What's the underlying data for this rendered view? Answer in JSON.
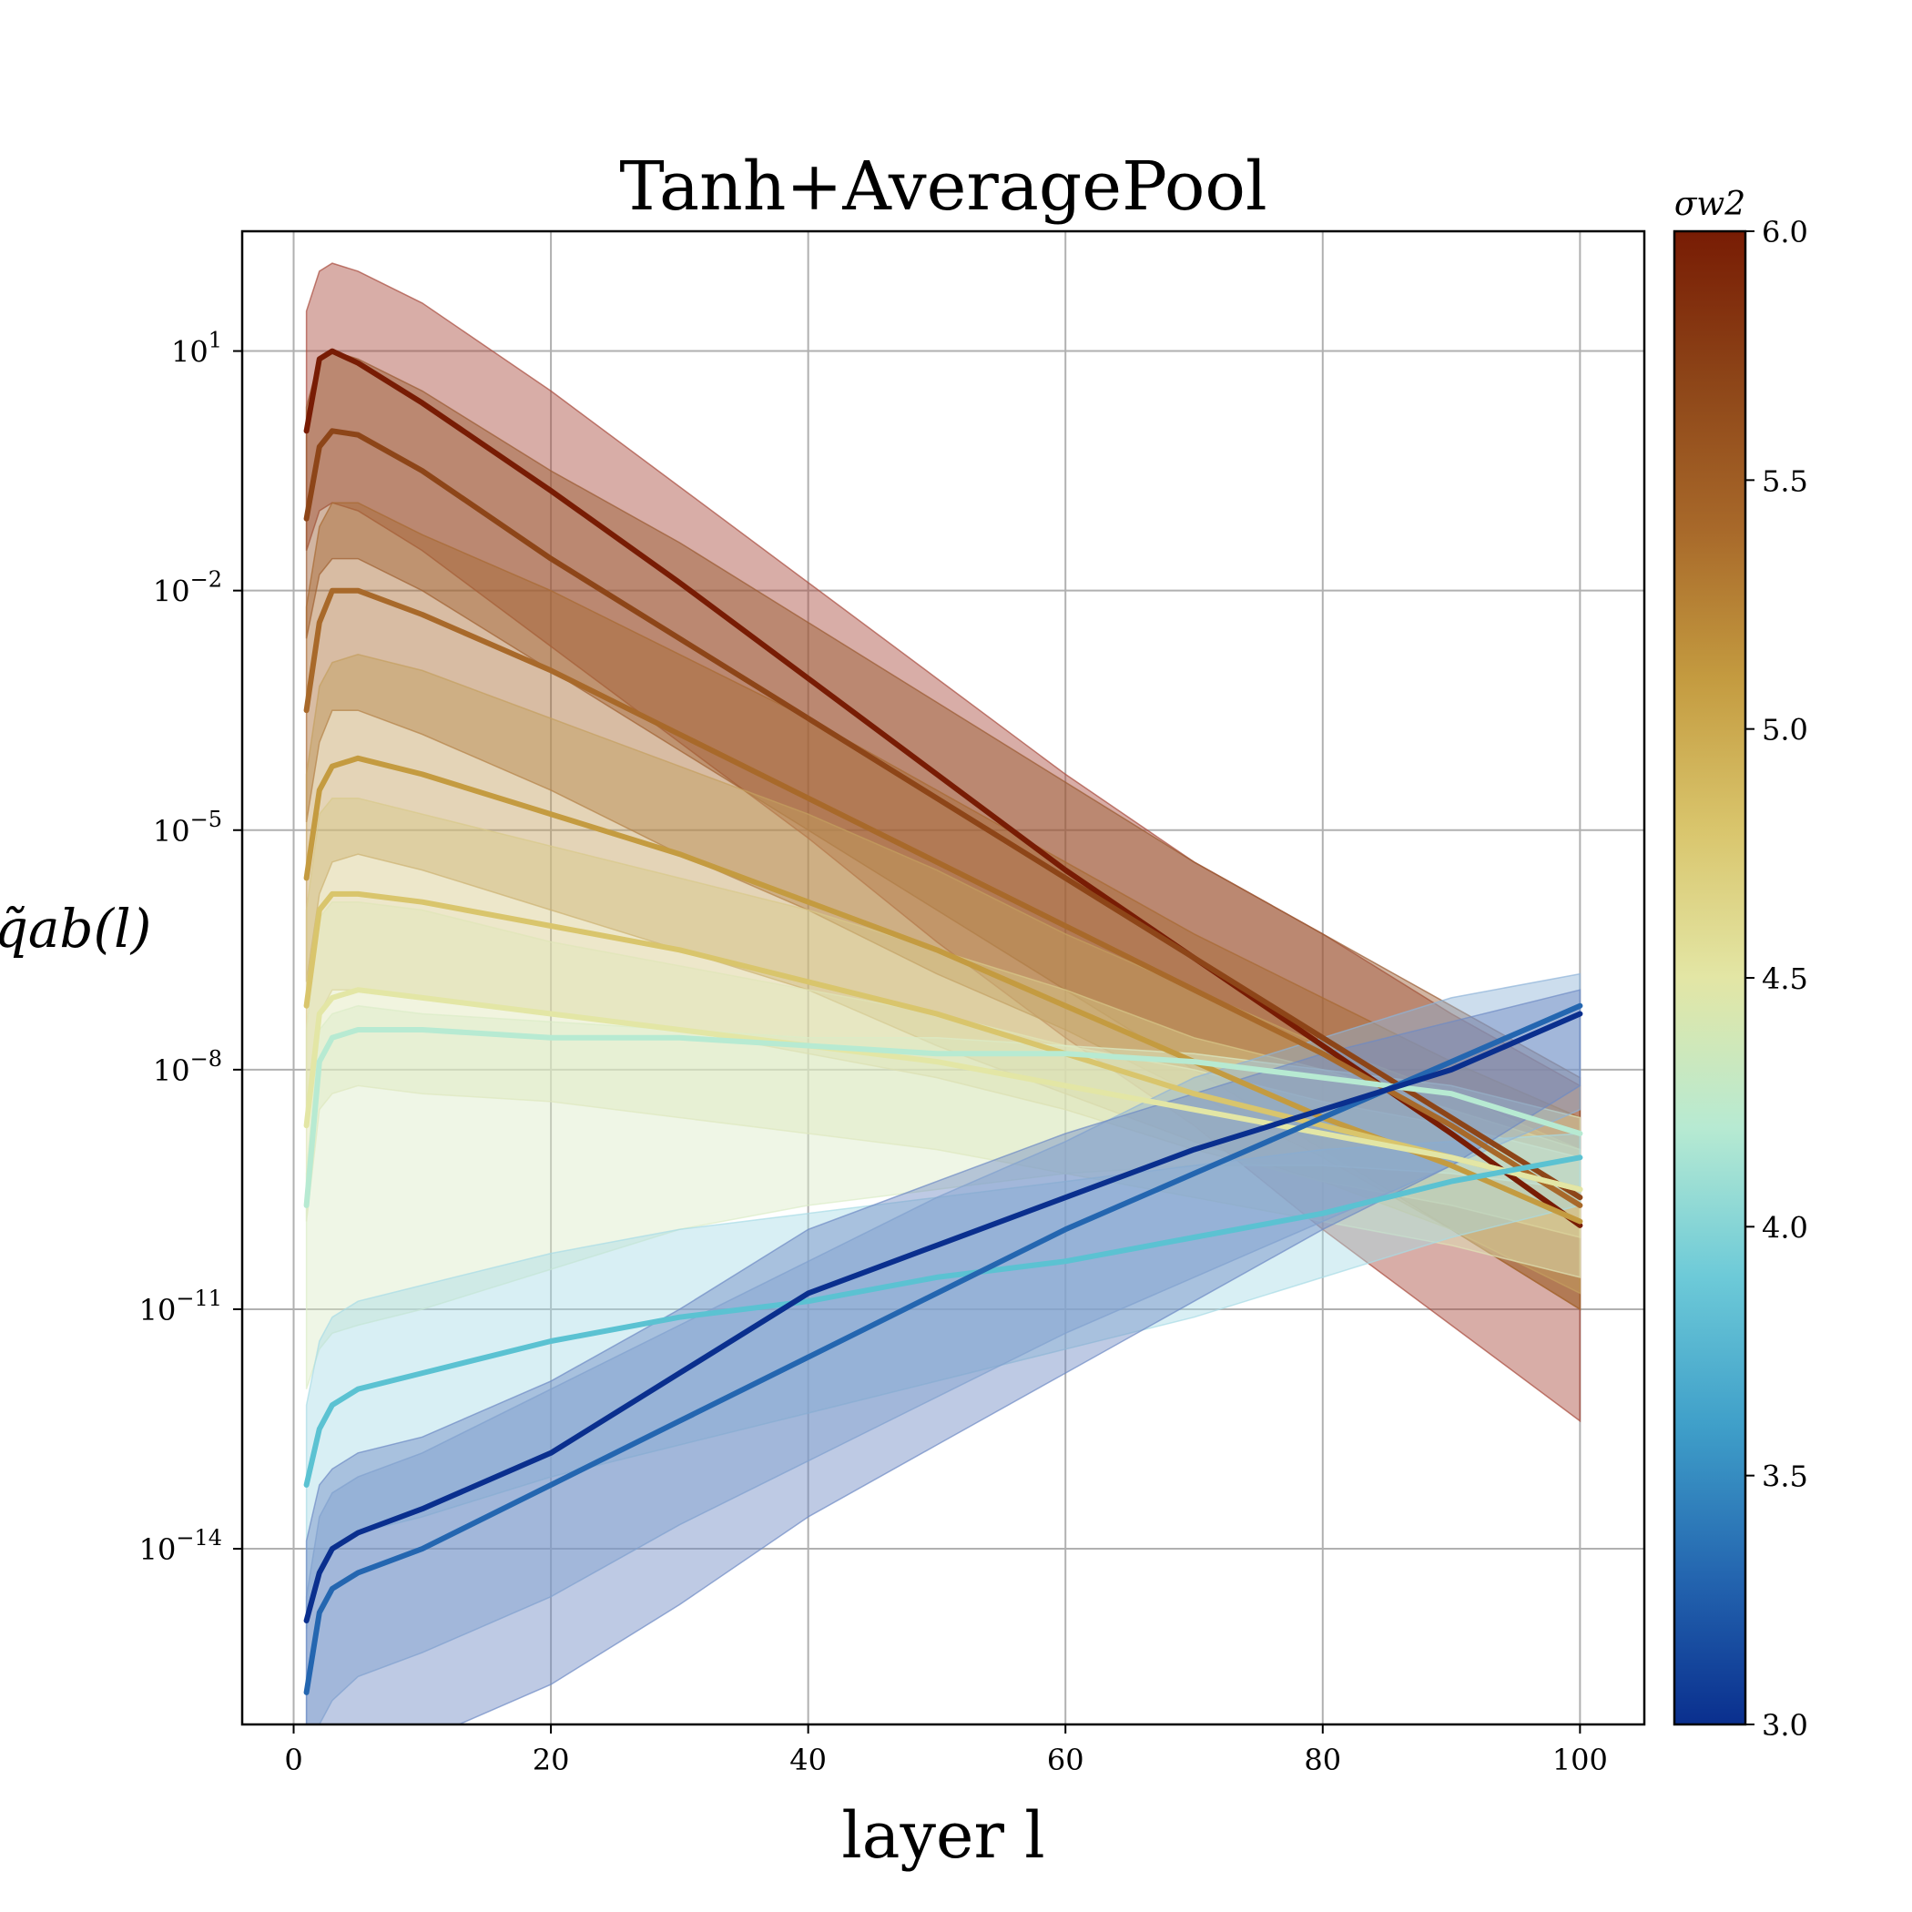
{
  "chart_data": {
    "type": "line",
    "title": "Tanh+AveragePool",
    "xlabel": "layer l",
    "ylabel": "q̃ab(l)",
    "xlim": [
      -4,
      105
    ],
    "ylim_log10": [
      -16.2,
      2.5
    ],
    "y_scale": "log",
    "x_ticks": [
      0,
      20,
      40,
      60,
      80,
      100
    ],
    "y_ticks_exp": [
      1,
      -2,
      -5,
      -8,
      -11,
      -14
    ],
    "grid": true,
    "colorbar": {
      "label": "σw2",
      "range": [
        3.0,
        6.0
      ],
      "ticks": [
        "6.0",
        "5.5",
        "5.0",
        "4.5",
        "4.0",
        "3.5",
        "3.0"
      ],
      "tick_values": [
        6.0,
        5.5,
        5.0,
        4.5,
        4.0,
        3.5,
        3.0
      ],
      "colors": [
        "#0a2f8e",
        "#2466b0",
        "#3f9fc9",
        "#6dcad8",
        "#b7ead2",
        "#e3e6a5",
        "#d9c56c",
        "#c49b40",
        "#a8692a",
        "#8d4518",
        "#781c04"
      ]
    },
    "series": [
      {
        "sigma_w2": 6.0,
        "color": "#781c04",
        "band_color": "#a84a3c",
        "x": [
          1,
          2,
          3,
          5,
          10,
          20,
          30,
          40,
          50,
          60,
          70,
          80,
          90,
          100
        ],
        "log10_mean": [
          0.0,
          0.9,
          1.0,
          0.85,
          0.35,
          -0.75,
          -1.9,
          -3.1,
          -4.3,
          -5.5,
          -6.6,
          -7.7,
          -8.8,
          -9.95
        ],
        "log10_upper": [
          1.5,
          2.0,
          2.1,
          2.0,
          1.6,
          0.5,
          -0.7,
          -1.9,
          -3.1,
          -4.3,
          -5.4,
          -6.3,
          -7.3,
          -8.2
        ],
        "log10_lower": [
          -1.5,
          -1.0,
          -0.9,
          -1.0,
          -1.5,
          -2.7,
          -3.9,
          -5.1,
          -6.4,
          -7.6,
          -8.7,
          -10.0,
          -11.2,
          -12.4
        ]
      },
      {
        "sigma_w2": 5.6,
        "color": "#8d4518",
        "band_color": "#9a5a30",
        "x": [
          1,
          2,
          3,
          5,
          10,
          20,
          30,
          40,
          50,
          60,
          70,
          80,
          90,
          100
        ],
        "log10_mean": [
          -1.1,
          -0.2,
          0.0,
          -0.05,
          -0.5,
          -1.6,
          -2.6,
          -3.6,
          -4.6,
          -5.6,
          -6.6,
          -7.6,
          -8.6,
          -9.6
        ],
        "log10_upper": [
          0.3,
          0.9,
          1.0,
          0.9,
          0.5,
          -0.5,
          -1.4,
          -2.4,
          -3.4,
          -4.4,
          -5.4,
          -6.3,
          -7.2,
          -8.1
        ],
        "log10_lower": [
          -2.6,
          -1.8,
          -1.6,
          -1.6,
          -2.0,
          -3.0,
          -4.0,
          -5.0,
          -6.0,
          -7.0,
          -8.0,
          -9.0,
          -10.0,
          -11.0
        ]
      },
      {
        "sigma_w2": 5.2,
        "color": "#a8692a",
        "band_color": "#a86a32",
        "x": [
          1,
          2,
          3,
          5,
          10,
          20,
          30,
          40,
          50,
          60,
          70,
          80,
          90,
          100
        ],
        "log10_mean": [
          -3.5,
          -2.4,
          -2.0,
          -2.0,
          -2.3,
          -3.0,
          -3.8,
          -4.6,
          -5.4,
          -6.2,
          -7.0,
          -7.8,
          -8.7,
          -9.7
        ],
        "log10_upper": [
          -2.2,
          -1.2,
          -0.9,
          -0.9,
          -1.3,
          -2.0,
          -2.8,
          -3.6,
          -4.5,
          -5.4,
          -6.3,
          -7.1,
          -7.9,
          -8.6
        ],
        "log10_lower": [
          -4.9,
          -3.9,
          -3.5,
          -3.5,
          -3.8,
          -4.5,
          -5.3,
          -6.0,
          -6.8,
          -7.5,
          -8.3,
          -9.1,
          -10.0,
          -11.0
        ]
      },
      {
        "sigma_w2": 4.9,
        "color": "#c49b40",
        "band_color": "#c4a060",
        "x": [
          1,
          2,
          3,
          5,
          10,
          20,
          30,
          40,
          50,
          60,
          70,
          80,
          90,
          100
        ],
        "log10_mean": [
          -5.6,
          -4.5,
          -4.2,
          -4.1,
          -4.3,
          -4.8,
          -5.3,
          -5.9,
          -6.5,
          -7.2,
          -7.9,
          -8.6,
          -9.2,
          -9.9
        ],
        "log10_upper": [
          -4.3,
          -3.2,
          -2.9,
          -2.8,
          -3.0,
          -3.6,
          -4.2,
          -4.8,
          -5.5,
          -6.3,
          -7.0,
          -7.7,
          -8.3,
          -9.0
        ],
        "log10_lower": [
          -6.9,
          -5.8,
          -5.4,
          -5.3,
          -5.5,
          -6.0,
          -6.5,
          -7.0,
          -7.7,
          -8.3,
          -8.9,
          -9.4,
          -10.0,
          -10.8
        ]
      },
      {
        "sigma_w2": 4.6,
        "color": "#d9c56c",
        "band_color": "#d8c98a",
        "x": [
          1,
          2,
          3,
          5,
          10,
          20,
          30,
          40,
          50,
          60,
          70,
          80,
          90,
          100
        ],
        "log10_mean": [
          -7.2,
          -6.0,
          -5.8,
          -5.8,
          -5.9,
          -6.2,
          -6.5,
          -6.9,
          -7.3,
          -7.8,
          -8.3,
          -8.7,
          -9.1,
          -9.5
        ],
        "log10_upper": [
          -6.0,
          -4.8,
          -4.6,
          -4.6,
          -4.8,
          -5.2,
          -5.6,
          -6.0,
          -6.5,
          -7.0,
          -7.6,
          -8.0,
          -8.5,
          -9.0
        ],
        "log10_lower": [
          -8.5,
          -7.3,
          -7.0,
          -7.0,
          -7.1,
          -7.3,
          -7.5,
          -7.8,
          -8.1,
          -8.5,
          -9.0,
          -9.4,
          -9.7,
          -10.1
        ]
      },
      {
        "sigma_w2": 4.3,
        "color": "#e3e6a5",
        "band_color": "#dfe6b8",
        "x": [
          1,
          2,
          3,
          5,
          10,
          20,
          30,
          40,
          50,
          60,
          70,
          80,
          90,
          100
        ],
        "log10_mean": [
          -8.7,
          -7.3,
          -7.1,
          -7.0,
          -7.1,
          -7.3,
          -7.5,
          -7.7,
          -7.9,
          -8.2,
          -8.5,
          -8.8,
          -9.1,
          -9.5
        ],
        "log10_upper": [
          -7.5,
          -6.1,
          -5.9,
          -5.9,
          -6.0,
          -6.4,
          -6.7,
          -7.0,
          -7.3,
          -7.7,
          -8.0,
          -8.4,
          -8.7,
          -9.1
        ],
        "log10_lower": [
          -9.9,
          -8.5,
          -8.3,
          -8.2,
          -8.3,
          -8.4,
          -8.6,
          -8.8,
          -9.0,
          -9.3,
          -9.6,
          -9.9,
          -10.2,
          -10.6
        ]
      },
      {
        "sigma_w2": 4.0,
        "color": "#b7ead2",
        "band_color": "#dcecc8",
        "x": [
          1,
          2,
          3,
          5,
          10,
          20,
          30,
          40,
          50,
          60,
          70,
          80,
          90,
          100
        ],
        "log10_mean": [
          -9.7,
          -7.9,
          -7.6,
          -7.5,
          -7.5,
          -7.6,
          -7.6,
          -7.7,
          -7.8,
          -7.8,
          -7.9,
          -8.1,
          -8.3,
          -8.8
        ],
        "log10_upper": [
          -9.3,
          -7.5,
          -7.3,
          -7.2,
          -7.3,
          -7.4,
          -7.5,
          -7.6,
          -7.6,
          -7.7,
          -7.8,
          -8.0,
          -8.2,
          -8.6
        ],
        "log10_lower": [
          -12.0,
          -11.5,
          -11.3,
          -11.2,
          -11.0,
          -10.5,
          -10.0,
          -9.7,
          -9.5,
          -9.3,
          -9.2,
          -9.2,
          -9.3,
          -9.5
        ]
      },
      {
        "sigma_w2": 3.7,
        "color": "#5bc2d2",
        "band_color": "#a8dbe6",
        "x": [
          1,
          2,
          3,
          5,
          10,
          20,
          30,
          40,
          50,
          60,
          70,
          80,
          90,
          100
        ],
        "log10_mean": [
          -13.2,
          -12.5,
          -12.2,
          -12.0,
          -11.8,
          -11.4,
          -11.1,
          -10.9,
          -10.6,
          -10.4,
          -10.1,
          -9.8,
          -9.4,
          -9.1
        ],
        "log10_upper": [
          -12.2,
          -11.4,
          -11.1,
          -10.9,
          -10.7,
          -10.3,
          -10.0,
          -9.8,
          -9.6,
          -9.4,
          -9.2,
          -9.0,
          -8.9,
          -8.8
        ],
        "log10_lower": [
          -15.0,
          -14.3,
          -14.0,
          -13.8,
          -13.6,
          -13.1,
          -12.7,
          -12.3,
          -11.9,
          -11.5,
          -11.1,
          -10.6,
          -10.1,
          -9.7
        ]
      },
      {
        "sigma_w2": 3.4,
        "color": "#2466b0",
        "band_color": "#8fb4d8",
        "x": [
          1,
          2,
          3,
          5,
          10,
          20,
          30,
          40,
          50,
          60,
          70,
          80,
          90,
          100
        ],
        "log10_mean": [
          -15.8,
          -14.8,
          -14.5,
          -14.3,
          -14.0,
          -13.2,
          -12.4,
          -11.6,
          -10.8,
          -10.0,
          -9.3,
          -8.6,
          -7.9,
          -7.2
        ],
        "log10_upper": [
          -14.6,
          -13.6,
          -13.3,
          -13.1,
          -12.8,
          -12.0,
          -11.2,
          -10.4,
          -9.6,
          -8.9,
          -8.1,
          -7.6,
          -7.1,
          -6.8
        ],
        "log10_lower": [
          -17.0,
          -16.2,
          -15.9,
          -15.6,
          -15.3,
          -14.6,
          -13.7,
          -12.9,
          -12.1,
          -11.3,
          -10.6,
          -9.9,
          -9.2,
          -8.5
        ]
      },
      {
        "sigma_w2": 3.0,
        "color": "#0a2f8e",
        "band_color": "#6e8ac4",
        "x": [
          1,
          2,
          3,
          5,
          10,
          20,
          30,
          40,
          50,
          60,
          70,
          80,
          90,
          100
        ],
        "log10_mean": [
          -14.9,
          -14.3,
          -14.0,
          -13.8,
          -13.5,
          -12.8,
          -11.8,
          -10.8,
          -10.2,
          -9.6,
          -9.0,
          -8.5,
          -8.0,
          -7.3
        ],
        "log10_upper": [
          -13.9,
          -13.2,
          -13.0,
          -12.8,
          -12.6,
          -11.9,
          -11.0,
          -10.0,
          -9.4,
          -8.8,
          -8.3,
          -7.8,
          -7.4,
          -7.0
        ],
        "log10_lower": [
          -18.4,
          -17.3,
          -17.0,
          -16.8,
          -16.4,
          -15.7,
          -14.7,
          -13.6,
          -12.7,
          -11.8,
          -10.9,
          -10.0,
          -9.2,
          -8.2
        ]
      }
    ]
  }
}
